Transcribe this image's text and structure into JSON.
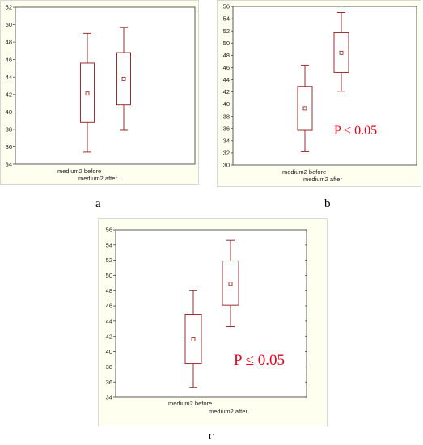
{
  "panel_labels": [
    "a",
    "b",
    "c"
  ],
  "chart_data": [
    {
      "type": "box",
      "panel": "a",
      "categories": [
        "medium2 before",
        "medium2 after"
      ],
      "series": [
        {
          "category": "medium2 before",
          "whisker_low": 35.4,
          "q1": 38.8,
          "center": 42.1,
          "q3": 45.6,
          "whisker_high": 49.0
        },
        {
          "category": "medium2 after",
          "whisker_low": 37.9,
          "q1": 40.8,
          "center": 43.8,
          "q3": 46.8,
          "whisker_high": 49.7
        }
      ],
      "ylim": [
        34,
        52
      ],
      "yticks": [
        "34",
        "36",
        "38",
        "40",
        "42",
        "44",
        "46",
        "48",
        "50",
        "52"
      ],
      "annotation": "",
      "grid": false
    },
    {
      "type": "box",
      "panel": "b",
      "categories": [
        "medium2 before",
        "medium2 after"
      ],
      "series": [
        {
          "category": "medium2 before",
          "whisker_low": 32.2,
          "q1": 35.7,
          "center": 39.3,
          "q3": 42.9,
          "whisker_high": 46.4
        },
        {
          "category": "medium2 after",
          "whisker_low": 42.1,
          "q1": 45.2,
          "center": 48.4,
          "q3": 51.7,
          "whisker_high": 55.0
        }
      ],
      "ylim": [
        30,
        56
      ],
      "yticks": [
        "30",
        "32",
        "34",
        "36",
        "38",
        "40",
        "42",
        "44",
        "46",
        "48",
        "50",
        "52",
        "54",
        "56"
      ],
      "annotation": "P ≤ 0.05",
      "grid": false
    },
    {
      "type": "box",
      "panel": "c",
      "categories": [
        "medium2 before",
        "medium2 after"
      ],
      "series": [
        {
          "category": "medium2 before",
          "whisker_low": 35.3,
          "q1": 38.4,
          "center": 41.6,
          "q3": 44.9,
          "whisker_high": 48.0
        },
        {
          "category": "medium2 after",
          "whisker_low": 43.3,
          "q1": 46.1,
          "center": 48.9,
          "q3": 51.9,
          "whisker_high": 54.6
        }
      ],
      "ylim": [
        34,
        56
      ],
      "yticks": [
        "34",
        "36",
        "38",
        "40",
        "42",
        "44",
        "46",
        "48",
        "50",
        "52",
        "54",
        "56"
      ],
      "annotation": "P ≤ 0.05",
      "grid": false
    }
  ],
  "colors": {
    "box": "#8b1a1a",
    "annotation": "#e8001c",
    "plot_bg": "#ffffff",
    "panel_bg": "#fffff0",
    "axis": "#333333"
  }
}
